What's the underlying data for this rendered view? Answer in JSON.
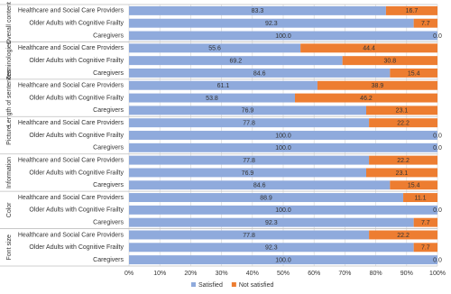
{
  "chart_data": {
    "type": "stacked-bar-horizontal",
    "groups": [
      {
        "name": "Overall content",
        "categories": [
          "Healthcare and Social Care Providers",
          "Older Adults with Cognitive Frailty",
          "Caregivers"
        ]
      },
      {
        "name": "Terminologies",
        "categories": [
          "Healthcare and Social Care Providers",
          "Older Adults with Cognitive Frailty",
          "Caregivers"
        ]
      },
      {
        "name": "Length of sentences",
        "categories": [
          "Healthcare and Social Care Providers",
          "Older Adults with Cognitive Frailty",
          "Caregivers"
        ]
      },
      {
        "name": "Picture",
        "categories": [
          "Healthcare and Social Care Providers",
          "Older Adults with Cognitive Frailty",
          "Caregivers"
        ]
      },
      {
        "name": "Information",
        "categories": [
          "Healthcare and Social Care Providers",
          "Older Adults with Cognitive Frailty",
          "Caregivers"
        ]
      },
      {
        "name": "Color",
        "categories": [
          "Healthcare and Social Care Providers",
          "Older Adults with Cognitive Frailty",
          "Caregivers"
        ]
      },
      {
        "name": "Font size",
        "categories": [
          "Healthcare and Social Care Providers",
          "Older Adults with Cognitive Frailty",
          "Caregivers"
        ]
      }
    ],
    "series": [
      {
        "name": "Satisfied",
        "color": "#8faadc",
        "values": [
          83.3,
          92.3,
          100,
          55.6,
          69.2,
          84.6,
          61.1,
          53.8,
          76.9,
          77.8,
          100,
          100,
          77.8,
          76.9,
          84.6,
          88.9,
          100,
          92.3,
          77.8,
          92.3,
          100
        ],
        "value_labels": [
          "83.3",
          "92.3",
          "100.0",
          "55.6",
          "69.2",
          "84.6",
          "61.1",
          "53.8",
          "76.9",
          "77.8",
          "100.0",
          "100.0",
          "77.8",
          "76.9",
          "84.6",
          "88.9",
          "100.0",
          "92.3",
          "77.8",
          "92.3",
          "100.0"
        ]
      },
      {
        "name": "Not satisfied",
        "color": "#ed7d31",
        "values": [
          16.7,
          7.7,
          0,
          44.4,
          30.8,
          15.4,
          38.9,
          46.2,
          23.1,
          22.2,
          0,
          0,
          22.2,
          23.1,
          15.4,
          11.1,
          0,
          7.7,
          22.2,
          7.7,
          0
        ],
        "value_labels": [
          "16.7",
          "7.7",
          "0.0",
          "44.4",
          "30.8",
          "15.4",
          "38.9",
          "46.2",
          "23.1",
          "22.2",
          "0.0",
          "0.0",
          "22.2",
          "23.1",
          "15.4",
          "11.1",
          "0.0",
          "7.7",
          "22.2",
          "7.7",
          "0.0"
        ]
      }
    ],
    "xlim": [
      0,
      100
    ],
    "xticks": [
      {
        "value": 0,
        "label": "0%"
      },
      {
        "value": 10,
        "label": "10%"
      },
      {
        "value": 20,
        "label": "20%"
      },
      {
        "value": 30,
        "label": "30%"
      },
      {
        "value": 40,
        "label": "40%"
      },
      {
        "value": 50,
        "label": "50%"
      },
      {
        "value": 60,
        "label": "60%"
      },
      {
        "value": 70,
        "label": "70%"
      },
      {
        "value": 80,
        "label": "80%"
      },
      {
        "value": 90,
        "label": "90%"
      },
      {
        "value": 100,
        "label": "100%"
      }
    ],
    "grid": true
  }
}
